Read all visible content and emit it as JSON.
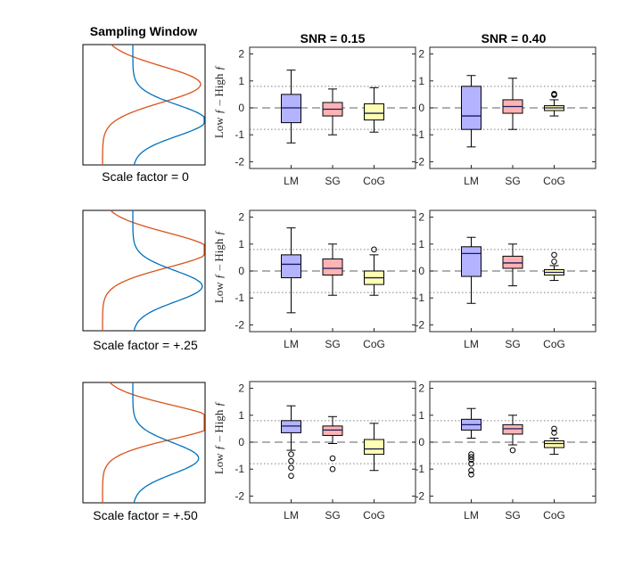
{
  "window_title": "Sampling Window",
  "column_titles": [
    "SNR = 0.15",
    "SNR = 0.40"
  ],
  "scale_labels": [
    "Scale factor = 0",
    "Scale factor = +.25",
    "Scale factor = +.50"
  ],
  "ylabel": "Low ƒ  –  High ƒ",
  "colors": {
    "LM": "#b3b3ff",
    "SG": "#ffb3b3",
    "CoG": "#ffffb3",
    "orange_curve": "#d95319",
    "blue_curve": "#0072bd",
    "median": "#1a1a5e"
  },
  "chart_data": [
    {
      "type": "box",
      "row": 0,
      "col": 0,
      "title": "SNR = 0.15",
      "categories": [
        "LM",
        "SG",
        "CoG"
      ],
      "ylim": [
        -2.25,
        2.25
      ],
      "yticks": [
        -2,
        -1,
        0,
        1,
        2
      ],
      "ref_lines": {
        "dashed": 0,
        "dotted": [
          0.8,
          -0.8
        ]
      },
      "series": [
        {
          "category": "LM",
          "whisker_low": -1.3,
          "q1": -0.55,
          "median": 0.0,
          "q3": 0.5,
          "whisker_high": 1.4,
          "outliers": []
        },
        {
          "category": "SG",
          "whisker_low": -1.0,
          "q1": -0.3,
          "median": -0.05,
          "q3": 0.2,
          "whisker_high": 0.7,
          "outliers": []
        },
        {
          "category": "CoG",
          "whisker_low": -0.9,
          "q1": -0.45,
          "median": -0.2,
          "q3": 0.15,
          "whisker_high": 0.75,
          "outliers": []
        }
      ]
    },
    {
      "type": "box",
      "row": 0,
      "col": 1,
      "title": "SNR = 0.40",
      "categories": [
        "LM",
        "SG",
        "CoG"
      ],
      "ylim": [
        -2.25,
        2.25
      ],
      "yticks": [
        -2,
        -1,
        0,
        1,
        2
      ],
      "ref_lines": {
        "dashed": 0,
        "dotted": [
          0.8,
          -0.8
        ]
      },
      "series": [
        {
          "category": "LM",
          "whisker_low": -1.45,
          "q1": -0.8,
          "median": -0.3,
          "q3": 0.8,
          "whisker_high": 1.2,
          "outliers": []
        },
        {
          "category": "SG",
          "whisker_low": -0.8,
          "q1": -0.2,
          "median": 0.05,
          "q3": 0.3,
          "whisker_high": 1.1,
          "outliers": []
        },
        {
          "category": "CoG",
          "whisker_low": -0.3,
          "q1": -0.1,
          "median": 0.0,
          "q3": 0.08,
          "whisker_high": 0.3,
          "outliers": [
            0.5,
            0.48,
            0.52
          ]
        }
      ]
    },
    {
      "type": "box",
      "row": 1,
      "col": 0,
      "categories": [
        "LM",
        "SG",
        "CoG"
      ],
      "ylim": [
        -2.25,
        2.25
      ],
      "yticks": [
        -2,
        -1,
        0,
        1,
        2
      ],
      "ref_lines": {
        "dashed": 0,
        "dotted": [
          0.8,
          -0.8
        ]
      },
      "series": [
        {
          "category": "LM",
          "whisker_low": -1.55,
          "q1": -0.25,
          "median": 0.25,
          "q3": 0.6,
          "whisker_high": 1.6,
          "outliers": []
        },
        {
          "category": "SG",
          "whisker_low": -0.9,
          "q1": -0.15,
          "median": 0.1,
          "q3": 0.45,
          "whisker_high": 1.0,
          "outliers": []
        },
        {
          "category": "CoG",
          "whisker_low": -0.9,
          "q1": -0.5,
          "median": -0.25,
          "q3": 0.0,
          "whisker_high": 0.6,
          "outliers": [
            0.8
          ]
        }
      ]
    },
    {
      "type": "box",
      "row": 1,
      "col": 1,
      "categories": [
        "LM",
        "SG",
        "CoG"
      ],
      "ylim": [
        -2.25,
        2.25
      ],
      "yticks": [
        -2,
        -1,
        0,
        1,
        2
      ],
      "ref_lines": {
        "dashed": 0,
        "dotted": [
          0.8,
          -0.8
        ]
      },
      "series": [
        {
          "category": "LM",
          "whisker_low": -1.2,
          "q1": -0.2,
          "median": 0.65,
          "q3": 0.9,
          "whisker_high": 1.25,
          "outliers": []
        },
        {
          "category": "SG",
          "whisker_low": -0.55,
          "q1": 0.1,
          "median": 0.3,
          "q3": 0.55,
          "whisker_high": 1.0,
          "outliers": []
        },
        {
          "category": "CoG",
          "whisker_low": -0.35,
          "q1": -0.15,
          "median": -0.05,
          "q3": 0.05,
          "whisker_high": 0.2,
          "outliers": [
            0.35,
            0.6
          ]
        }
      ]
    },
    {
      "type": "box",
      "row": 2,
      "col": 0,
      "categories": [
        "LM",
        "SG",
        "CoG"
      ],
      "ylim": [
        -2.25,
        2.25
      ],
      "yticks": [
        -2,
        -1,
        0,
        1,
        2
      ],
      "ref_lines": {
        "dashed": 0,
        "dotted": [
          0.8,
          -0.8
        ]
      },
      "series": [
        {
          "category": "LM",
          "whisker_low": -0.3,
          "q1": 0.35,
          "median": 0.6,
          "q3": 0.8,
          "whisker_high": 1.35,
          "outliers": [
            -0.45,
            -0.7,
            -0.95,
            -1.25
          ]
        },
        {
          "category": "SG",
          "whisker_low": -0.05,
          "q1": 0.25,
          "median": 0.45,
          "q3": 0.6,
          "whisker_high": 0.95,
          "outliers": [
            -0.6,
            -1.0
          ]
        },
        {
          "category": "CoG",
          "whisker_low": -1.05,
          "q1": -0.45,
          "median": -0.25,
          "q3": 0.1,
          "whisker_high": 0.7,
          "outliers": []
        }
      ]
    },
    {
      "type": "box",
      "row": 2,
      "col": 1,
      "categories": [
        "LM",
        "SG",
        "CoG"
      ],
      "ylim": [
        -2.25,
        2.25
      ],
      "yticks": [
        -2,
        -1,
        0,
        1,
        2
      ],
      "ref_lines": {
        "dashed": 0,
        "dotted": [
          0.8,
          -0.8
        ]
      },
      "series": [
        {
          "category": "LM",
          "whisker_low": 0.15,
          "q1": 0.45,
          "median": 0.65,
          "q3": 0.85,
          "whisker_high": 1.25,
          "outliers": [
            -0.45,
            -0.55,
            -0.65,
            -0.8,
            -1.05,
            -1.2
          ]
        },
        {
          "category": "SG",
          "whisker_low": -0.1,
          "q1": 0.3,
          "median": 0.5,
          "q3": 0.65,
          "whisker_high": 1.0,
          "outliers": [
            -0.3
          ]
        },
        {
          "category": "CoG",
          "whisker_low": -0.45,
          "q1": -0.2,
          "median": -0.05,
          "q3": 0.05,
          "whisker_high": 0.15,
          "outliers": [
            0.5,
            0.35
          ]
        }
      ]
    }
  ],
  "window_panels": [
    {
      "row": 0,
      "scale_factor": 0,
      "caption": "Scale factor = 0"
    },
    {
      "row": 1,
      "scale_factor": 0.25,
      "caption": "Scale factor = +.25"
    },
    {
      "row": 2,
      "scale_factor": 0.5,
      "caption": "Scale factor = +.50"
    }
  ]
}
